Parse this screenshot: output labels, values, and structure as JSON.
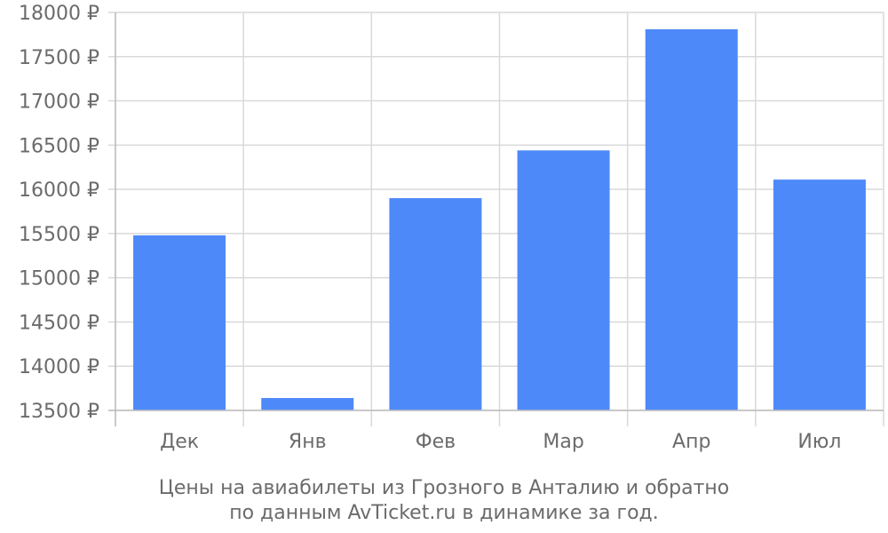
{
  "chart_data": {
    "type": "bar",
    "categories": [
      "Дек",
      "Янв",
      "Фев",
      "Мар",
      "Апр",
      "Июл"
    ],
    "values": [
      15480,
      13640,
      15900,
      16440,
      17810,
      16110
    ],
    "ylim": [
      13500,
      18000
    ],
    "yticks": [
      13500,
      14000,
      14500,
      15000,
      15500,
      16000,
      16500,
      17000,
      17500,
      18000
    ],
    "ytick_suffix": " ₽",
    "grid": true,
    "bar_color": "#4d89f9",
    "grid_color": "#d9d9d9",
    "caption_lines": [
      "Цены на авиабилеты из Грозного в Анталию и обратно",
      "по данным AvTicket.ru в динамике за год."
    ]
  }
}
